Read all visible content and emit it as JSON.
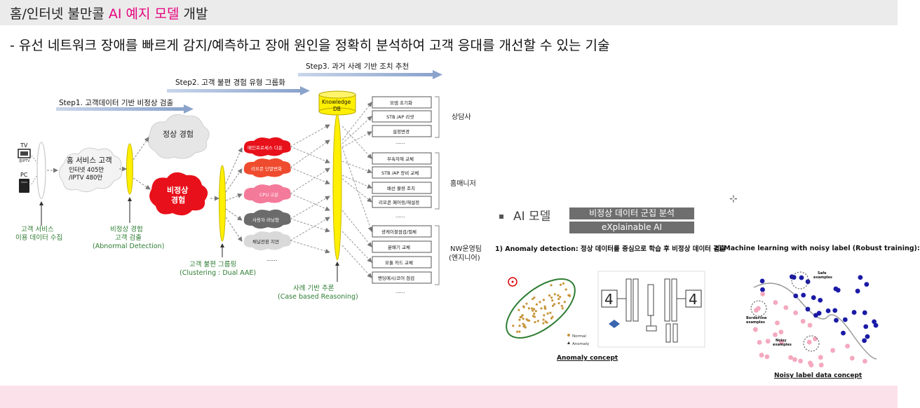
{
  "title": {
    "prefix": "홈/인터넷 불만콜 ",
    "accent": "AI 예지 모델",
    "suffix": " 개발"
  },
  "subtitle": "- 유선 네트워크 장애를 빠르게 감지/예측하고 장애 원인을 정확히 분석하여 고객 응대를 개선할 수 있는 기술",
  "steps": {
    "step1": "Step1. 고객데이터 기반 비정상 검출",
    "step2": "Step2. 고객 불편 경험 유형 그룹화",
    "step3": "Step3. 과거 사례 기반 조치 추천"
  },
  "devices": {
    "tv": "TV",
    "tv_sub": "홈IPTV",
    "pc": "PC"
  },
  "customer": {
    "line1": "홈 서비스 고객",
    "line2": "인터넷 405만",
    "line3": "/IPTV 480만"
  },
  "normal": "정상 경험",
  "abnormal": {
    "line1": "비정상",
    "line2": "경험"
  },
  "collect": {
    "line1": "고객 서비스",
    "line2": "이용 데이터 수집"
  },
  "detect": {
    "line1": "비정상 경험",
    "line2": "고객 검출",
    "line3": "(Abnormal Detection)"
  },
  "categories": [
    "메인프로세스 다운",
    "리모콘 단말변화",
    "CPU 고온",
    "사용자 러닝형",
    "채널전환 지연"
  ],
  "ellipsis": "......",
  "clustering": {
    "line1": "고객 불편 그룹핑",
    "line2": "(Clustering : Dual AAE)"
  },
  "kdb": {
    "line1": "Knowledge",
    "line2": "DB"
  },
  "cbr": {
    "line1": "사례 기반 추론",
    "line2": "(Case based Reasoning)"
  },
  "actions": {
    "counselor": [
      "모뎀 초기화",
      "STB /AP 리셋",
      "설정변경"
    ],
    "home_manager": [
      "부속자재 교체",
      "STB /AP 장비 교체",
      "배선 불량 조치",
      "리모콘 페어링/재설정"
    ],
    "nw": [
      "광케이블점검/절체",
      "분배기 교체",
      "모듈 카드 교체",
      "밴딩메시/코어 점검"
    ]
  },
  "groups": {
    "counselor": "상담사",
    "home_manager": "홈매니저",
    "nw_line1": "NW운영팀",
    "nw_line2": "(엔지니어)"
  },
  "ai_model": {
    "label": "AI 모델",
    "box1": "비정상 데이터 군집 분석",
    "box2": "eXplainable AI"
  },
  "anomaly": {
    "title": "1) Anomaly detection: 정상 데이터를 중심으로 학습 후 비정상 데이터 검출",
    "legend_normal": "Normal",
    "legend_anomaly": "Anomaly",
    "caption": "Anomaly concept"
  },
  "noisy": {
    "title": "2) Machine learning with noisy label (Robust training):",
    "safe": "Safe",
    "safe2": "examples",
    "borderline": "Borderline",
    "borderline2": "examples",
    "noisy_lbl": "Noisy",
    "noisy_lbl2": "examples",
    "caption": "Noisy label data concept"
  },
  "colors": {
    "accent": "#e6007e",
    "abnormal_red": "#e8101a",
    "yellow": "#ffef00",
    "green": "#2e7d32",
    "blue_dot": "#1a1aa6",
    "pink_dot": "#f4a9bf"
  }
}
